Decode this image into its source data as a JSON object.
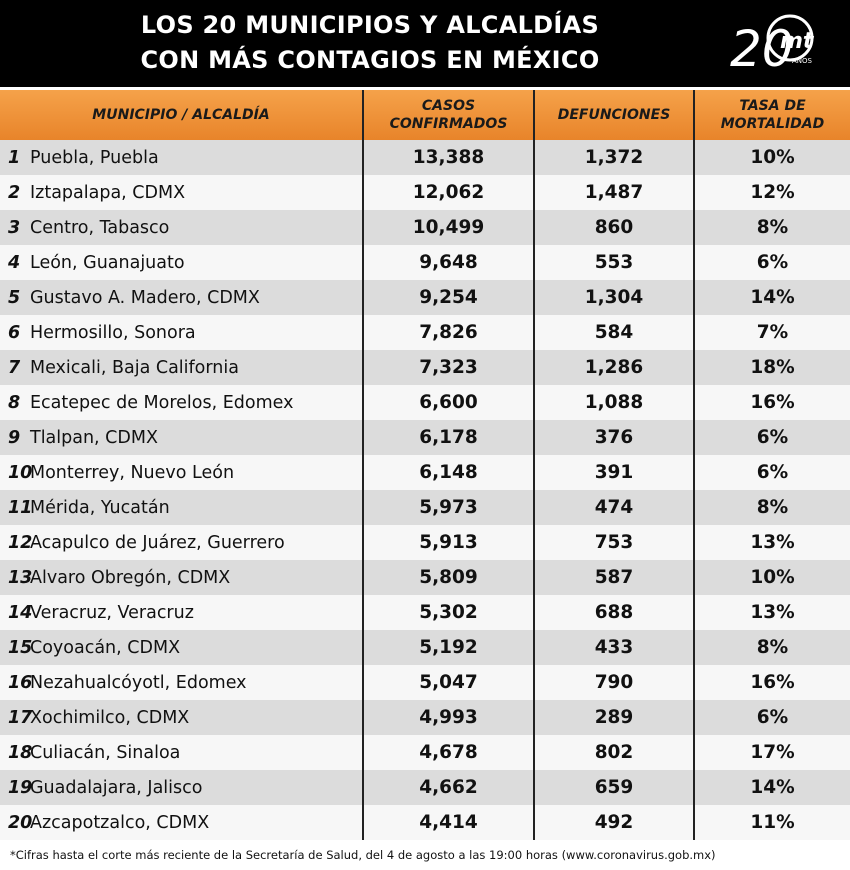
{
  "title_line1": "LOS 20 MUNICIPIOS Y ALCALDÍAS",
  "title_line2": "CON MÁS CONTAGIOS EN MÉXICO",
  "logo": {
    "number": "20",
    "letters": "mt",
    "small": "AÑOS"
  },
  "columns": {
    "municipio": "MUNICIPIO / ALCALDÍA",
    "casos_line1": "CASOS",
    "casos_line2": "CONFIRMADOS",
    "defunciones": "DEFUNCIONES",
    "tasa_line1": "TASA DE",
    "tasa_line2": "MORTALIDAD"
  },
  "rows": [
    {
      "rank": "1",
      "name": "Puebla, Puebla",
      "casos": "13,388",
      "defunciones": "1,372",
      "tasa": "10%"
    },
    {
      "rank": "2",
      "name": "Iztapalapa, CDMX",
      "casos": "12,062",
      "defunciones": "1,487",
      "tasa": "12%"
    },
    {
      "rank": "3",
      "name": "Centro, Tabasco",
      "casos": "10,499",
      "defunciones": "860",
      "tasa": "8%"
    },
    {
      "rank": "4",
      "name": "León, Guanajuato",
      "casos": "9,648",
      "defunciones": "553",
      "tasa": "6%"
    },
    {
      "rank": "5",
      "name": "Gustavo A. Madero, CDMX",
      "casos": "9,254",
      "defunciones": "1,304",
      "tasa": "14%"
    },
    {
      "rank": "6",
      "name": "Hermosillo, Sonora",
      "casos": "7,826",
      "defunciones": "584",
      "tasa": "7%"
    },
    {
      "rank": "7",
      "name": "Mexicali, Baja California",
      "casos": "7,323",
      "defunciones": "1,286",
      "tasa": "18%"
    },
    {
      "rank": "8",
      "name": "Ecatepec de Morelos, Edomex",
      "casos": "6,600",
      "defunciones": "1,088",
      "tasa": "16%"
    },
    {
      "rank": "9",
      "name": "Tlalpan, CDMX",
      "casos": "6,178",
      "defunciones": "376",
      "tasa": "6%"
    },
    {
      "rank": "10",
      "name": "Monterrey, Nuevo León",
      "casos": "6,148",
      "defunciones": "391",
      "tasa": "6%"
    },
    {
      "rank": "11",
      "name": "Mérida, Yucatán",
      "casos": "5,973",
      "defunciones": "474",
      "tasa": "8%"
    },
    {
      "rank": "12",
      "name": "Acapulco de Juárez, Guerrero",
      "casos": "5,913",
      "defunciones": "753",
      "tasa": "13%"
    },
    {
      "rank": "13",
      "name": "Alvaro Obregón, CDMX",
      "casos": "5,809",
      "defunciones": "587",
      "tasa": "10%"
    },
    {
      "rank": "14",
      "name": "Veracruz, Veracruz",
      "casos": "5,302",
      "defunciones": "688",
      "tasa": "13%"
    },
    {
      "rank": "15",
      "name": "Coyoacán, CDMX",
      "casos": "5,192",
      "defunciones": "433",
      "tasa": "8%"
    },
    {
      "rank": "16",
      "name": "Nezahualcóyotl, Edomex",
      "casos": "5,047",
      "defunciones": "790",
      "tasa": "16%"
    },
    {
      "rank": "17",
      "name": "Xochimilco, CDMX",
      "casos": "4,993",
      "defunciones": "289",
      "tasa": "6%"
    },
    {
      "rank": "18",
      "name": "Culiacán, Sinaloa",
      "casos": "4,678",
      "defunciones": "802",
      "tasa": "17%"
    },
    {
      "rank": "19",
      "name": "Guadalajara, Jalisco",
      "casos": "4,662",
      "defunciones": "659",
      "tasa": "14%"
    },
    {
      "rank": "20",
      "name": "Azcapotzalco, CDMX",
      "casos": "4,414",
      "defunciones": "492",
      "tasa": "11%"
    }
  ],
  "footnote": "*Cifras hasta el corte más reciente de la Secretaría de Salud, del 4 de agosto a las 19:00 horas (www.coronavirus.gob.mx)",
  "colors": {
    "header_bg": "#000000",
    "header_orange": "#f0952f",
    "row_dark": "#dcdcdc",
    "row_light": "#f7f7f7"
  }
}
